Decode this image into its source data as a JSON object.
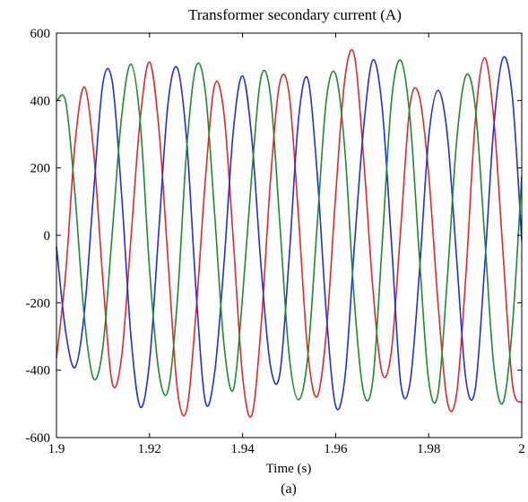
{
  "chart_data": {
    "type": "line",
    "title": "Transformer secondary current (A)",
    "xlabel": "Time (s)",
    "ylabel": "",
    "caption": "(a)",
    "xlim": [
      1.9,
      2.0
    ],
    "ylim": [
      -600,
      600
    ],
    "x_ticks": [
      1.9,
      1.92,
      1.94,
      1.96,
      1.98,
      2.0
    ],
    "x_tick_labels": [
      "1.9",
      "1.92",
      "1.94",
      "1.96",
      "1.98",
      "2"
    ],
    "y_ticks": [
      -600,
      -400,
      -200,
      0,
      200,
      400,
      600
    ],
    "y_tick_labels": [
      "-600",
      "-400",
      "-200",
      "0",
      "200",
      "400",
      "600"
    ],
    "grid": false,
    "legend": "none",
    "x": [
      1.9,
      1.902,
      1.904,
      1.906,
      1.908,
      1.91,
      1.912,
      1.914,
      1.916,
      1.918,
      1.92,
      1.922,
      1.924,
      1.926,
      1.928,
      1.93,
      1.932,
      1.934,
      1.936,
      1.938,
      1.94,
      1.942,
      1.944,
      1.946,
      1.948,
      1.95,
      1.952,
      1.954,
      1.956,
      1.958,
      1.96,
      1.962,
      1.964,
      1.966,
      1.968,
      1.97,
      1.972,
      1.974,
      1.976,
      1.978,
      1.98,
      1.982,
      1.984,
      1.986,
      1.988,
      1.99,
      1.992,
      1.994,
      1.996,
      1.998,
      2.0
    ],
    "series": [
      {
        "color": "#e8262a",
        "values": [
          -364,
          -108,
          274,
          440,
          245,
          -137,
          -439,
          -360,
          -10,
          345,
          514,
          318,
          -79,
          -459,
          -517,
          -227,
          165,
          446,
          361,
          -13,
          -418,
          -533,
          -265,
          164,
          452,
          420,
          60,
          -343,
          -479,
          -288,
          118,
          466,
          535,
          233,
          -157,
          -409,
          -342,
          21,
          388,
          412,
          181,
          -200,
          -493,
          -470,
          -118,
          337,
          527,
          344,
          -56,
          -440,
          -497
        ]
      },
      {
        "color": "#1f2ee6",
        "values": [
          -33,
          -288,
          -392,
          -228,
          131,
          453,
          455,
          121,
          -299,
          -509,
          -375,
          14,
          394,
          496,
          279,
          -164,
          -494,
          -407,
          -85,
          308,
          473,
          285,
          -97,
          -388,
          -412,
          -69,
          341,
          465,
          190,
          -232,
          -506,
          -422,
          -38,
          317,
          520,
          379,
          -21,
          -439,
          -437,
          -111,
          290,
          430,
          299,
          -68,
          -428,
          -457,
          -100,
          323,
          527,
          409,
          -15
        ]
      },
      {
        "color": "#1e8a2e",
        "values": [
          398,
          395,
          118,
          -245,
          -426,
          -328,
          9,
          352,
          508,
          337,
          -100,
          -405,
          -459,
          -189,
          259,
          501,
          426,
          62,
          -323,
          -458,
          -182,
          185,
          471,
          414,
          36,
          -354,
          -488,
          -361,
          24,
          401,
          478,
          251,
          -190,
          -465,
          -430,
          -27,
          398,
          519,
          345,
          -62,
          -431,
          -470,
          -130,
          278,
          474,
          382,
          4,
          -387,
          -496,
          -269,
          176
        ]
      }
    ]
  }
}
